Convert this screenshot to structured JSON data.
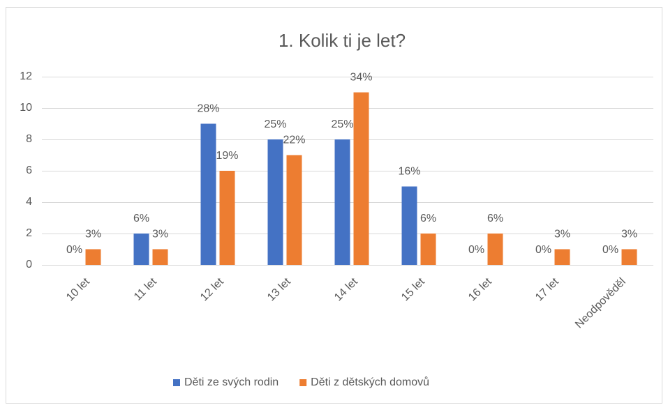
{
  "chart_data": {
    "type": "bar",
    "title": "1. Kolik ti je let?",
    "categories": [
      "10 let",
      "11 let",
      "12 let",
      "13 let",
      "14 let",
      "15 let",
      "16 let",
      "17 let",
      "Neodpověděl"
    ],
    "series": [
      {
        "name": "Děti ze svých rodin",
        "color": "#4472c4",
        "values": [
          0,
          2,
          9,
          8,
          8,
          5,
          0,
          0,
          0
        ],
        "value_labels": [
          "0%",
          "6%",
          "28%",
          "25%",
          "25%",
          "16%",
          "0%",
          "0%",
          "0%"
        ]
      },
      {
        "name": "Děti z dětských domovů",
        "color": "#ed7d31",
        "values": [
          1,
          1,
          6,
          7,
          11,
          2,
          2,
          1,
          1
        ],
        "value_labels": [
          "3%",
          "3%",
          "19%",
          "22%",
          "34%",
          "6%",
          "6%",
          "3%",
          "3%"
        ]
      }
    ],
    "ylim": [
      0,
      12
    ],
    "yticks": [
      0,
      2,
      4,
      6,
      8,
      10,
      12
    ],
    "grid": true,
    "legend": "bottom"
  }
}
